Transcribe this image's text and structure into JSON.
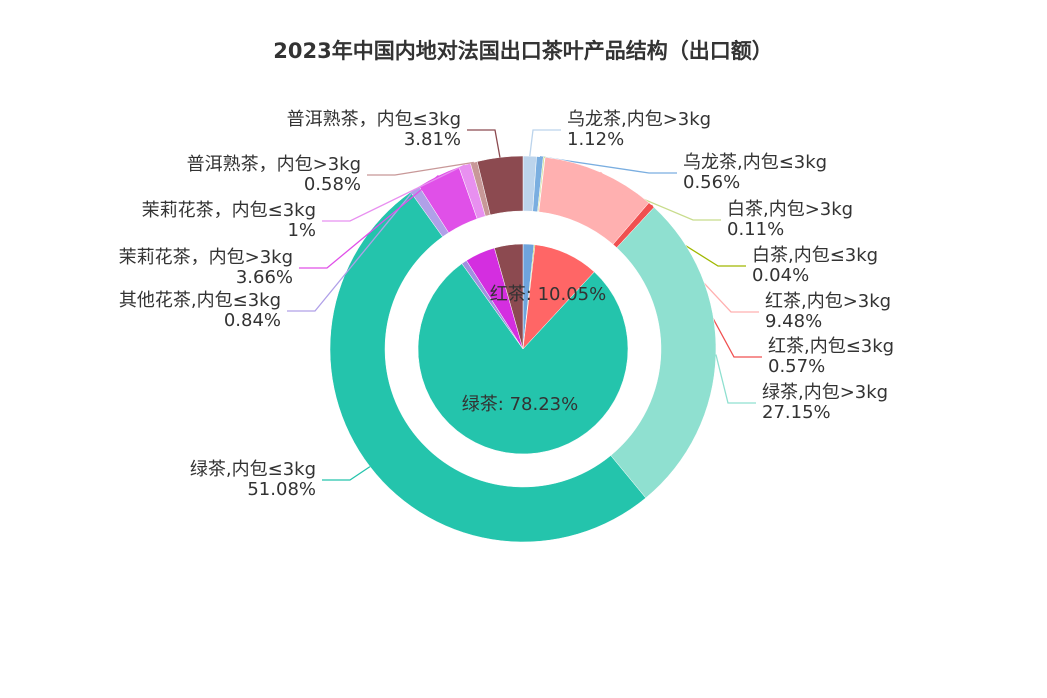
{
  "chart_data": [
    {
      "type": "pie",
      "title": "2023年中国内地对法国出口茶叶产品结构（出口额）",
      "values": [
        1.68,
        0.15,
        10.05,
        78.23,
        0.84,
        4.66,
        4.39
      ],
      "value_labels": [
        null,
        null,
        "红茶: 10.05%",
        "绿茶: 78.23%",
        null,
        null,
        null
      ],
      "colors": [
        "#6ea4dc",
        "#a0b800",
        "#ff6666",
        "#24c4ac",
        "#a090e0",
        "#d42ee0",
        "#8c4a50"
      ]
    },
    {
      "type": "donut",
      "categories": [
        "乌龙茶,内包>3kg",
        "乌龙茶,内包≤3kg",
        "白茶,内包>3kg",
        "白茶,内包≤3kg",
        "红茶,内包>3kg",
        "红茶,内包≤3kg",
        "绿茶,内包>3kg",
        "绿茶,内包≤3kg",
        "其他花茶,内包≤3kg",
        "茉莉花茶，内包>3kg",
        "茉莉花茶，内包≤3kg",
        "普洱熟茶，内包>3kg",
        "普洱熟茶，内包≤3kg"
      ],
      "values": [
        1.12,
        0.56,
        0.11,
        0.04,
        9.48,
        0.57,
        27.15,
        51.08,
        0.84,
        3.66,
        1,
        0.58,
        3.81
      ],
      "value_labels": [
        "1.12%",
        "0.56%",
        "0.11%",
        "0.04%",
        "9.48%",
        "0.57%",
        "27.15%",
        "51.08%",
        "0.84%",
        "3.66%",
        "1%",
        "0.58%",
        "3.81%"
      ],
      "colors": [
        "#bcd4ec",
        "#7aaee0",
        "#c8dc8c",
        "#a0b800",
        "#ffb0b0",
        "#f05050",
        "#8fe0d0",
        "#24c4ac",
        "#b0a0e8",
        "#e050e8",
        "#e890f0",
        "#c89898",
        "#8c4a50"
      ]
    }
  ]
}
